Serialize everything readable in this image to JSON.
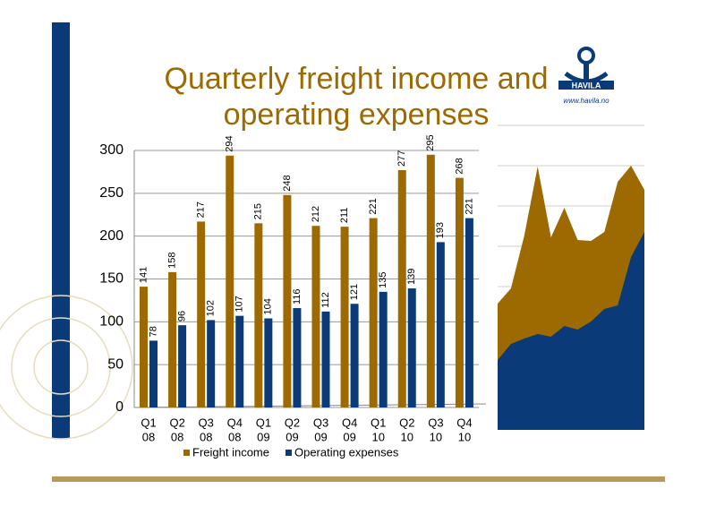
{
  "logo": {
    "name": "HAVILA",
    "url": "www.havila.no"
  },
  "chart_data": {
    "type": "bar",
    "title": [
      "Quarterly freight income and",
      "operating expenses"
    ],
    "categories": [
      [
        "Q1",
        "08"
      ],
      [
        "Q2",
        "08"
      ],
      [
        "Q3",
        "08"
      ],
      [
        "Q4",
        "08"
      ],
      [
        "Q1",
        "09"
      ],
      [
        "Q2",
        "09"
      ],
      [
        "Q3",
        "09"
      ],
      [
        "Q4",
        "09"
      ],
      [
        "Q1",
        "10"
      ],
      [
        "Q2",
        "10"
      ],
      [
        "Q3",
        "10"
      ],
      [
        "Q4",
        "10"
      ]
    ],
    "series": [
      {
        "name": "Freight income",
        "color": "#9c6a00",
        "values": [
          141,
          158,
          217,
          294,
          215,
          248,
          212,
          211,
          221,
          277,
          295,
          268
        ]
      },
      {
        "name": "Operating expenses",
        "color": "#0a3b78",
        "values": [
          78,
          96,
          102,
          107,
          104,
          116,
          112,
          121,
          135,
          139,
          193,
          221
        ]
      }
    ],
    "ylim": [
      0,
      300
    ],
    "yticks": [
      0,
      50,
      100,
      150,
      200,
      250,
      300
    ],
    "grid": true,
    "legend": "bottom"
  }
}
